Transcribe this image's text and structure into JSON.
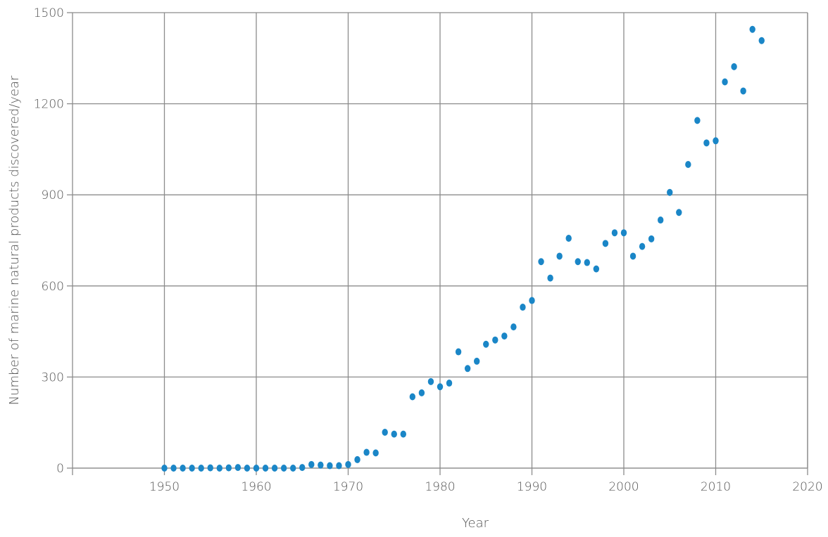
{
  "chart_data": {
    "type": "scatter",
    "title": "",
    "xlabel": "Year",
    "ylabel": "Number of marine natural products discovered/year",
    "xlim": [
      1940,
      2020
    ],
    "ylim": [
      0,
      1500
    ],
    "x_ticks": [
      1950,
      1960,
      1970,
      1980,
      1990,
      2000,
      2010,
      2020
    ],
    "y_ticks": [
      0,
      300,
      600,
      900,
      1200,
      1500
    ],
    "grid": true,
    "legend": "none",
    "marker_color": "#1a86c7",
    "grid_color": "#8c8c8c",
    "series": [
      {
        "x": [
          1950,
          1951,
          1952,
          1953,
          1954,
          1955,
          1956,
          1957,
          1958,
          1959,
          1960,
          1961,
          1962,
          1963,
          1964,
          1965,
          1966,
          1967,
          1968,
          1969,
          1970,
          1971,
          1972,
          1973,
          1974,
          1975,
          1976,
          1977,
          1978,
          1979,
          1980,
          1981,
          1982,
          1983,
          1984,
          1985,
          1986,
          1987,
          1988,
          1989,
          1990,
          1991,
          1992,
          1993,
          1994,
          1995,
          1996,
          1997,
          1998,
          1999,
          2000,
          2001,
          2002,
          2003,
          2004,
          2005,
          2006,
          2007,
          2008,
          2009,
          2010,
          2011,
          2012,
          2013,
          2014,
          2015
        ],
        "y": [
          0,
          0,
          0,
          0,
          0,
          1,
          0,
          1,
          2,
          0,
          0,
          0,
          0,
          0,
          0,
          2,
          12,
          10,
          8,
          8,
          12,
          28,
          52,
          50,
          118,
          112,
          112,
          235,
          248,
          285,
          268,
          280,
          383,
          328,
          352,
          408,
          422,
          435,
          465,
          530,
          552,
          680,
          626,
          698,
          757,
          680,
          677,
          656,
          740,
          775,
          775,
          698,
          730,
          755,
          817,
          908,
          842,
          1000,
          1145,
          1071,
          1078,
          1272,
          1322,
          1242,
          1445,
          1408
        ]
      }
    ]
  }
}
